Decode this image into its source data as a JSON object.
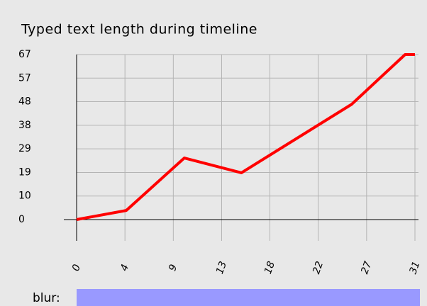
{
  "chart_data": {
    "type": "line",
    "title": "Typed text length during timeline",
    "x": [
      0,
      4.55,
      9.87,
      15.1,
      25.2,
      30.1,
      31
    ],
    "series": [
      {
        "name": null,
        "color": "#ff0000",
        "values": [
          0,
          3.7,
          25,
          19,
          46.8,
          67,
          67
        ]
      }
    ],
    "xlim": [
      0,
      31
    ],
    "xticks": [
      0,
      {
        "value": 4.43,
        "label": "4"
      },
      {
        "value": 8.86,
        "label": "9"
      },
      {
        "value": 13.29,
        "label": "13"
      },
      {
        "value": 17.71,
        "label": "18"
      },
      {
        "value": 22.14,
        "label": "22"
      },
      {
        "value": 26.57,
        "label": "27"
      },
      31
    ],
    "ylim": [
      0,
      67
    ],
    "yticks": [
      0,
      {
        "value": 9.57,
        "label": "10"
      },
      {
        "value": 19.14,
        "label": "19"
      },
      {
        "value": 28.71,
        "label": "29"
      },
      {
        "value": 38.29,
        "label": "38"
      },
      {
        "value": 47.86,
        "label": "48"
      },
      {
        "value": 57.43,
        "label": "57"
      },
      67
    ],
    "grid": true
  },
  "controls": {
    "blur_label": "blur:"
  }
}
